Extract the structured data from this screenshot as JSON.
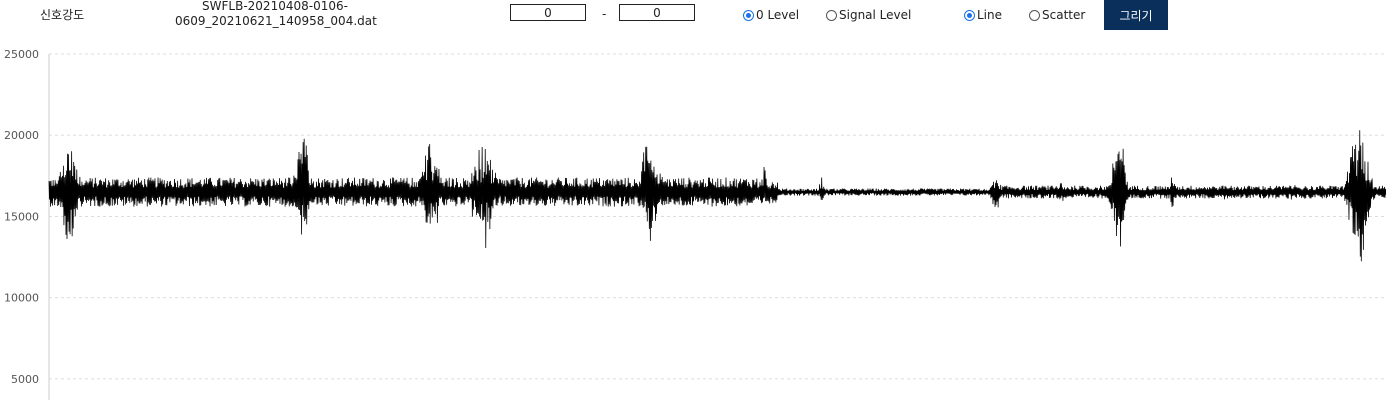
{
  "header": {
    "label": "신호강도",
    "filename_line1": "SWFLB-20210408-0106-",
    "filename_line2": "0609_20210621_140958_004.dat"
  },
  "range": {
    "start": "0",
    "separator": "-",
    "end": "0"
  },
  "level_options": [
    {
      "label": "0 Level",
      "checked": true
    },
    {
      "label": "Signal Level",
      "checked": false
    }
  ],
  "mode_options": [
    {
      "label": "Line",
      "checked": true
    },
    {
      "label": "Scatter",
      "checked": false
    }
  ],
  "draw_button": "그리기",
  "colors": {
    "line": "#000000",
    "grid": "#dddddd",
    "button": "#0b2f5b",
    "radio": "#1a73e8"
  },
  "chart_data": {
    "type": "line",
    "y_ticks": [
      25000,
      20000,
      15000,
      10000,
      5000
    ],
    "ylim": [
      3700,
      25000
    ],
    "grid": true,
    "baseline": 16500,
    "series": [
      {
        "bursts": [
          {
            "center": 0.015,
            "width": 0.012,
            "peak": 20600,
            "low": 11800
          },
          {
            "center": 0.19,
            "width": 0.01,
            "peak": 20800,
            "low": 12600
          },
          {
            "center": 0.285,
            "width": 0.012,
            "peak": 20500,
            "low": 12800
          },
          {
            "center": 0.325,
            "width": 0.014,
            "peak": 20500,
            "low": 12200
          },
          {
            "center": 0.45,
            "width": 0.012,
            "peak": 21000,
            "low": 12800
          },
          {
            "center": 0.535,
            "width": 0.006,
            "peak": 18300,
            "low": 15300
          },
          {
            "center": 0.578,
            "width": 0.004,
            "peak": 17500,
            "low": 15600
          },
          {
            "center": 0.708,
            "width": 0.006,
            "peak": 17900,
            "low": 15000
          },
          {
            "center": 0.757,
            "width": 0.004,
            "peak": 17200,
            "low": 15500
          },
          {
            "center": 0.8,
            "width": 0.008,
            "peak": 21900,
            "low": 11000
          },
          {
            "center": 0.84,
            "width": 0.004,
            "peak": 17700,
            "low": 15300
          },
          {
            "center": 0.88,
            "width": 0.004,
            "peak": 17200,
            "low": 15600
          },
          {
            "center": 0.93,
            "width": 0.004,
            "peak": 17400,
            "low": 15500
          },
          {
            "center": 0.98,
            "width": 0.012,
            "peak": 22800,
            "low": 10800
          }
        ]
      }
    ]
  }
}
